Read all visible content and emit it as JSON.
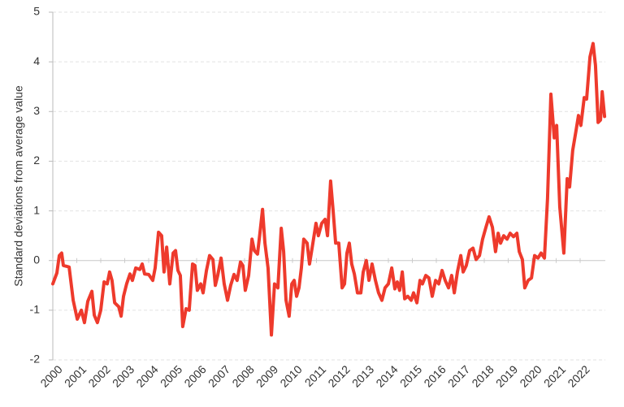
{
  "chart_data": {
    "type": "line",
    "y_label": "Standard deviations from average value",
    "xlim": [
      2000,
      2023.05
    ],
    "xticks": [
      2000,
      2001,
      2002,
      2003,
      2004,
      2005,
      2006,
      2007,
      2008,
      2009,
      2010,
      2011,
      2012,
      2013,
      2014,
      2015,
      2016,
      2017,
      2018,
      2019,
      2020,
      2021,
      2022
    ],
    "ylim": [
      -2,
      5
    ],
    "yticks": [
      -2,
      -1,
      0,
      1,
      2,
      3,
      4,
      5
    ],
    "grid": true,
    "series": [
      {
        "color": "#ee3a2c",
        "x": [
          2000.0,
          2000.17,
          2000.27,
          2000.37,
          2000.44,
          2000.68,
          2000.85,
          2001.02,
          2001.19,
          2001.32,
          2001.46,
          2001.63,
          2001.73,
          2001.86,
          2002.0,
          2002.14,
          2002.27,
          2002.37,
          2002.47,
          2002.58,
          2002.75,
          2002.85,
          2002.95,
          2003.08,
          2003.22,
          2003.32,
          2003.46,
          2003.63,
          2003.73,
          2003.83,
          2004.0,
          2004.17,
          2004.27,
          2004.41,
          2004.54,
          2004.64,
          2004.75,
          2004.88,
          2005.02,
          2005.12,
          2005.22,
          2005.32,
          2005.42,
          2005.56,
          2005.69,
          2005.83,
          2005.93,
          2006.03,
          2006.17,
          2006.27,
          2006.41,
          2006.54,
          2006.68,
          2006.78,
          2006.88,
          2007.02,
          2007.15,
          2007.29,
          2007.42,
          2007.56,
          2007.69,
          2007.83,
          2007.93,
          2008.03,
          2008.17,
          2008.31,
          2008.41,
          2008.54,
          2008.64,
          2008.75,
          2008.85,
          2008.98,
          2009.12,
          2009.25,
          2009.39,
          2009.53,
          2009.63,
          2009.73,
          2009.86,
          2009.97,
          2010.07,
          2010.17,
          2010.27,
          2010.37,
          2010.47,
          2010.61,
          2010.71,
          2010.85,
          2010.98,
          2011.08,
          2011.22,
          2011.36,
          2011.46,
          2011.59,
          2011.69,
          2011.8,
          2011.93,
          2012.07,
          2012.17,
          2012.27,
          2012.37,
          2012.47,
          2012.58,
          2012.71,
          2012.85,
          2012.95,
          2013.08,
          2013.19,
          2013.32,
          2013.46,
          2013.59,
          2013.73,
          2013.86,
          2014.0,
          2014.14,
          2014.27,
          2014.37,
          2014.47,
          2014.58,
          2014.68,
          2014.81,
          2014.95,
          2015.05,
          2015.19,
          2015.32,
          2015.42,
          2015.56,
          2015.69,
          2015.83,
          2015.97,
          2016.1,
          2016.24,
          2016.37,
          2016.51,
          2016.64,
          2016.75,
          2016.88,
          2017.02,
          2017.12,
          2017.25,
          2017.39,
          2017.53,
          2017.66,
          2017.8,
          2017.93,
          2018.07,
          2018.2,
          2018.34,
          2018.47,
          2018.58,
          2018.68,
          2018.81,
          2018.95,
          2019.08,
          2019.22,
          2019.36,
          2019.46,
          2019.59,
          2019.69,
          2019.83,
          2019.97,
          2020.1,
          2020.24,
          2020.37,
          2020.51,
          2020.64,
          2020.78,
          2020.92,
          2021.02,
          2021.15,
          2021.32,
          2021.46,
          2021.56,
          2021.69,
          2021.83,
          2021.93,
          2022.03,
          2022.17,
          2022.27,
          2022.41,
          2022.54,
          2022.64,
          2022.75,
          2022.85,
          2022.92,
          2023.02
        ],
        "values": [
          -0.47,
          -0.25,
          0.1,
          0.15,
          -0.1,
          -0.13,
          -0.8,
          -1.18,
          -1.0,
          -1.25,
          -0.82,
          -0.62,
          -1.1,
          -1.25,
          -1.0,
          -0.43,
          -0.47,
          -0.23,
          -0.4,
          -0.85,
          -0.93,
          -1.12,
          -0.72,
          -0.47,
          -0.27,
          -0.4,
          -0.15,
          -0.18,
          -0.07,
          -0.27,
          -0.28,
          -0.4,
          -0.15,
          0.57,
          0.5,
          -0.23,
          0.27,
          -0.47,
          0.15,
          0.2,
          -0.2,
          -0.3,
          -1.33,
          -0.97,
          -1.0,
          -0.07,
          -0.1,
          -0.6,
          -0.47,
          -0.65,
          -0.2,
          0.1,
          0.02,
          -0.5,
          -0.3,
          0.05,
          -0.47,
          -0.8,
          -0.5,
          -0.28,
          -0.4,
          -0.03,
          -0.1,
          -0.6,
          -0.3,
          0.43,
          0.2,
          0.13,
          0.55,
          1.03,
          0.35,
          -0.15,
          -1.5,
          -0.47,
          -0.55,
          0.65,
          0.18,
          -0.8,
          -1.12,
          -0.47,
          -0.4,
          -0.72,
          -0.55,
          -0.15,
          0.43,
          0.35,
          -0.07,
          0.35,
          0.75,
          0.5,
          0.75,
          0.83,
          0.5,
          1.6,
          1.03,
          0.35,
          0.35,
          -0.55,
          -0.47,
          0.15,
          0.35,
          -0.07,
          -0.27,
          -0.65,
          -0.65,
          -0.23,
          0,
          -0.4,
          -0.07,
          -0.4,
          -0.65,
          -0.8,
          -0.55,
          -0.47,
          -0.15,
          -0.57,
          -0.43,
          -0.6,
          -0.23,
          -0.77,
          -0.72,
          -0.8,
          -0.65,
          -0.85,
          -0.4,
          -0.47,
          -0.3,
          -0.35,
          -0.72,
          -0.4,
          -0.47,
          -0.2,
          -0.4,
          -0.55,
          -0.3,
          -0.65,
          -0.23,
          0.1,
          -0.23,
          -0.1,
          0.2,
          0.25,
          0.02,
          0.1,
          0.43,
          0.67,
          0.88,
          0.67,
          0.18,
          0.55,
          0.35,
          0.5,
          0.43,
          0.55,
          0.48,
          0.55,
          0.18,
          0.02,
          -0.55,
          -0.4,
          -0.35,
          0.1,
          0.05,
          0.15,
          0.05,
          1.25,
          3.35,
          2.47,
          2.72,
          1.08,
          0.15,
          1.65,
          1.48,
          2.22,
          2.62,
          2.92,
          2.72,
          3.28,
          3.25,
          4.1,
          4.37,
          3.93,
          2.78,
          2.83,
          3.4,
          2.9
        ]
      }
    ]
  }
}
